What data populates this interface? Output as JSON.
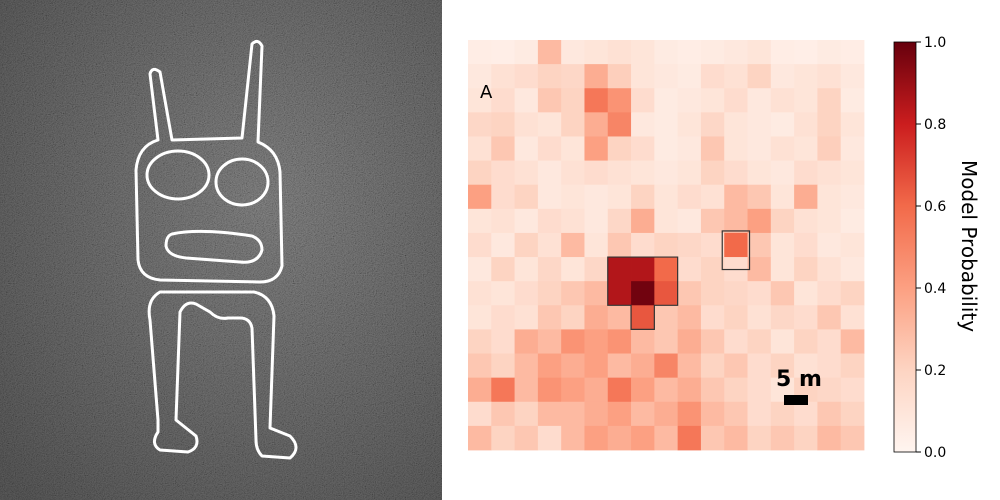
{
  "photo": {
    "figure": "humanoid-geoglyph-outline",
    "background_color": "#7a7a7a",
    "outline_color": "#ffffff"
  },
  "chart_data": {
    "type": "heatmap",
    "panel_label": "A",
    "scale_bar_label": "5 m",
    "colorbar": {
      "label": "Model Probability",
      "range": [
        0.0,
        1.0
      ],
      "ticks": [
        0.0,
        0.2,
        0.4,
        0.6,
        0.8,
        1.0
      ],
      "tick_labels": [
        "0.0",
        "0.2",
        "0.4",
        "0.6",
        "0.8",
        "1.0"
      ],
      "colormap": "Reds"
    },
    "grid_size": [
      17,
      17
    ],
    "values": [
      [
        0.05,
        0.04,
        0.06,
        0.3,
        0.08,
        0.1,
        0.12,
        0.1,
        0.06,
        0.05,
        0.06,
        0.08,
        0.1,
        0.05,
        0.04,
        0.06,
        0.05
      ],
      [
        0.08,
        0.12,
        0.15,
        0.2,
        0.18,
        0.35,
        0.22,
        0.1,
        0.08,
        0.06,
        0.15,
        0.12,
        0.2,
        0.08,
        0.1,
        0.12,
        0.08
      ],
      [
        0.1,
        0.15,
        0.08,
        0.25,
        0.2,
        0.55,
        0.45,
        0.15,
        0.06,
        0.08,
        0.1,
        0.15,
        0.08,
        0.12,
        0.1,
        0.2,
        0.06
      ],
      [
        0.18,
        0.2,
        0.12,
        0.1,
        0.2,
        0.35,
        0.5,
        0.08,
        0.06,
        0.1,
        0.18,
        0.1,
        0.08,
        0.06,
        0.12,
        0.2,
        0.1
      ],
      [
        0.12,
        0.25,
        0.08,
        0.15,
        0.1,
        0.4,
        0.2,
        0.15,
        0.06,
        0.08,
        0.25,
        0.1,
        0.08,
        0.12,
        0.1,
        0.22,
        0.08
      ],
      [
        0.2,
        0.15,
        0.12,
        0.08,
        0.12,
        0.15,
        0.12,
        0.1,
        0.08,
        0.1,
        0.2,
        0.15,
        0.1,
        0.08,
        0.15,
        0.12,
        0.1
      ],
      [
        0.4,
        0.15,
        0.2,
        0.08,
        0.1,
        0.08,
        0.1,
        0.2,
        0.1,
        0.15,
        0.12,
        0.3,
        0.25,
        0.1,
        0.35,
        0.1,
        0.08
      ],
      [
        0.1,
        0.12,
        0.08,
        0.15,
        0.12,
        0.08,
        0.18,
        0.35,
        0.1,
        0.08,
        0.25,
        0.3,
        0.4,
        0.2,
        0.12,
        0.1,
        0.06
      ],
      [
        0.15,
        0.08,
        0.2,
        0.12,
        0.3,
        0.1,
        0.25,
        0.15,
        0.2,
        0.18,
        0.15,
        0.6,
        0.25,
        0.1,
        0.15,
        0.08,
        0.1
      ],
      [
        0.08,
        0.2,
        0.1,
        0.18,
        0.1,
        0.18,
        0.85,
        0.85,
        0.6,
        0.15,
        0.2,
        0.15,
        0.3,
        0.1,
        0.2,
        0.12,
        0.08
      ],
      [
        0.12,
        0.1,
        0.15,
        0.2,
        0.25,
        0.3,
        0.85,
        0.98,
        0.65,
        0.25,
        0.2,
        0.18,
        0.15,
        0.25,
        0.1,
        0.15,
        0.2
      ],
      [
        0.1,
        0.15,
        0.12,
        0.25,
        0.2,
        0.35,
        0.3,
        0.65,
        0.25,
        0.3,
        0.15,
        0.2,
        0.12,
        0.18,
        0.15,
        0.25,
        0.12
      ],
      [
        0.2,
        0.15,
        0.35,
        0.3,
        0.45,
        0.4,
        0.45,
        0.3,
        0.25,
        0.35,
        0.25,
        0.15,
        0.2,
        0.1,
        0.2,
        0.15,
        0.3
      ],
      [
        0.25,
        0.2,
        0.3,
        0.4,
        0.35,
        0.4,
        0.3,
        0.35,
        0.5,
        0.3,
        0.2,
        0.25,
        0.15,
        0.2,
        0.12,
        0.15,
        0.2
      ],
      [
        0.35,
        0.55,
        0.3,
        0.45,
        0.4,
        0.35,
        0.55,
        0.4,
        0.3,
        0.35,
        0.25,
        0.2,
        0.15,
        0.1,
        0.2,
        0.18,
        0.15
      ],
      [
        0.15,
        0.25,
        0.2,
        0.3,
        0.3,
        0.35,
        0.4,
        0.3,
        0.35,
        0.45,
        0.3,
        0.25,
        0.15,
        0.2,
        0.15,
        0.25,
        0.2
      ],
      [
        0.3,
        0.2,
        0.25,
        0.15,
        0.3,
        0.4,
        0.35,
        0.4,
        0.3,
        0.55,
        0.25,
        0.3,
        0.2,
        0.25,
        0.2,
        0.3,
        0.25
      ]
    ],
    "highlight_boxes": [
      {
        "name": "main-detection-box",
        "cells": [
          [
            9,
            6
          ],
          [
            9,
            8
          ],
          [
            10,
            6
          ],
          [
            10,
            8
          ],
          [
            11,
            7
          ]
        ]
      },
      {
        "name": "small-detection-box",
        "cells": [
          [
            8,
            11
          ]
        ]
      }
    ]
  }
}
